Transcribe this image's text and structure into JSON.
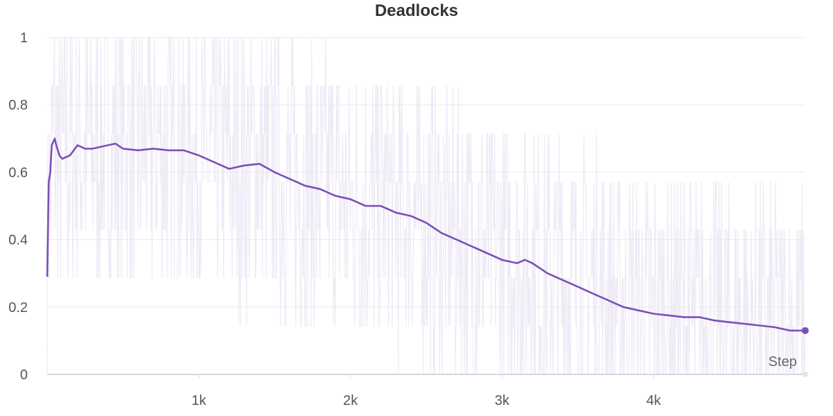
{
  "chart_data": {
    "type": "line",
    "title": "Deadlocks",
    "xlabel": "Step",
    "ylabel": "",
    "xlim": [
      0,
      5000
    ],
    "ylim": [
      0,
      1
    ],
    "x_ticks": [
      1000,
      2000,
      3000,
      4000
    ],
    "x_tick_labels": [
      "1k",
      "2k",
      "3k",
      "4k"
    ],
    "y_ticks": [
      0,
      0.2,
      0.4,
      0.6,
      0.8,
      1
    ],
    "y_tick_labels": [
      "0",
      "0.2",
      "0.4",
      "0.6",
      "0.8",
      "1"
    ],
    "grid": true,
    "colors": {
      "smoothed": "#7b4fb8",
      "raw": "#ece8f5",
      "grid": "#e9e9ee"
    },
    "series": [
      {
        "role": "smoothed",
        "x": [
          0,
          10,
          20,
          30,
          40,
          50,
          60,
          80,
          100,
          150,
          200,
          250,
          300,
          350,
          400,
          450,
          500,
          600,
          700,
          800,
          900,
          1000,
          1100,
          1200,
          1300,
          1400,
          1500,
          1600,
          1700,
          1800,
          1900,
          2000,
          2100,
          2200,
          2300,
          2400,
          2500,
          2600,
          2700,
          2800,
          2900,
          3000,
          3100,
          3150,
          3200,
          3300,
          3400,
          3500,
          3600,
          3700,
          3800,
          3900,
          4000,
          4100,
          4200,
          4300,
          4400,
          4500,
          4600,
          4700,
          4800,
          4900,
          5000
        ],
        "y": [
          0.29,
          0.57,
          0.6,
          0.68,
          0.69,
          0.7,
          0.68,
          0.65,
          0.64,
          0.65,
          0.68,
          0.67,
          0.67,
          0.675,
          0.68,
          0.685,
          0.67,
          0.665,
          0.67,
          0.665,
          0.665,
          0.65,
          0.63,
          0.61,
          0.62,
          0.625,
          0.6,
          0.58,
          0.56,
          0.55,
          0.53,
          0.52,
          0.5,
          0.5,
          0.48,
          0.47,
          0.45,
          0.42,
          0.4,
          0.38,
          0.36,
          0.34,
          0.33,
          0.34,
          0.33,
          0.3,
          0.28,
          0.26,
          0.24,
          0.22,
          0.2,
          0.19,
          0.18,
          0.175,
          0.17,
          0.17,
          0.16,
          0.155,
          0.15,
          0.145,
          0.14,
          0.13,
          0.13
        ]
      }
    ]
  }
}
